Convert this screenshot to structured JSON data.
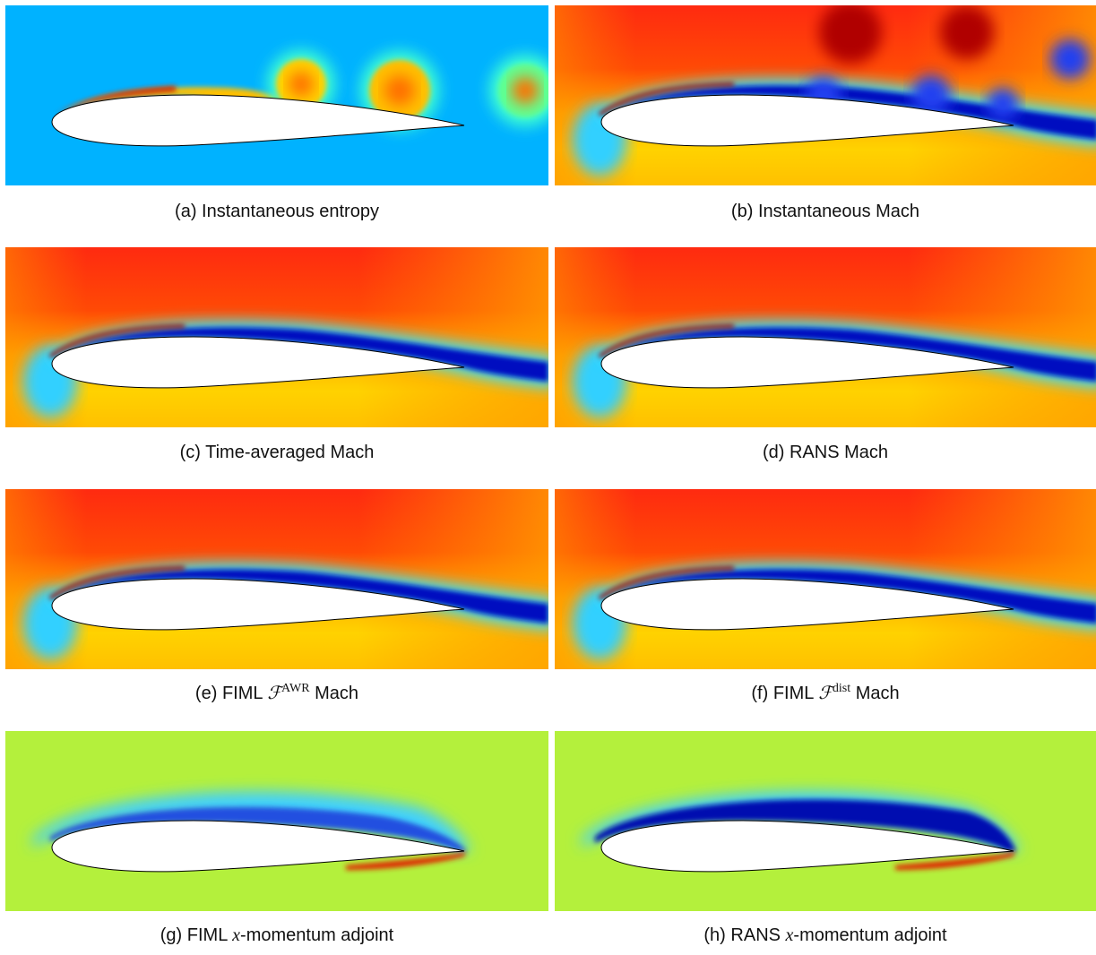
{
  "panels": [
    {
      "label": "(a)",
      "caption": "Instantaneous entropy"
    },
    {
      "label": "(b)",
      "caption": "Instantaneous Mach"
    },
    {
      "label": "(c)",
      "caption": "Time-averaged Mach"
    },
    {
      "label": "(d)",
      "caption": "RANS Mach"
    },
    {
      "label": "(e)",
      "caption": {
        "prefix": "FIML ",
        "symbol": "ℱ",
        "superscript": "AWR",
        "suffix": " Mach"
      }
    },
    {
      "label": "(f)",
      "caption": {
        "prefix": "FIML ",
        "symbol": "ℱ",
        "superscript": "dist",
        "suffix": " Mach"
      }
    },
    {
      "label": "(g)",
      "caption": {
        "prefix": "FIML ",
        "italic": "x",
        "suffix": "-momentum adjoint"
      }
    },
    {
      "label": "(h)",
      "caption": {
        "prefix": "RANS ",
        "italic": "x",
        "suffix": "-momentum adjoint"
      }
    }
  ]
}
